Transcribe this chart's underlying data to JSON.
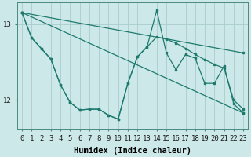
{
  "bg_color": "#cce8e8",
  "line_color": "#1e7a6e",
  "grid_color": "#aacccc",
  "xlabel": "Humidex (Indice chaleur)",
  "xlabel_fontsize": 7.5,
  "tick_fontsize": 6.5,
  "yticks": [
    12,
    13
  ],
  "xticks": [
    0,
    1,
    2,
    3,
    4,
    5,
    6,
    7,
    8,
    9,
    10,
    11,
    12,
    13,
    14,
    15,
    16,
    17,
    18,
    19,
    20,
    21,
    22,
    23
  ],
  "ylim": [
    11.62,
    13.28
  ],
  "xlim": [
    -0.5,
    23.5
  ],
  "series1_x": [
    0,
    1,
    2,
    3,
    4,
    5,
    6,
    7,
    8,
    9,
    10,
    11,
    12,
    13,
    14,
    15,
    16,
    17,
    18,
    19,
    20,
    21,
    22,
    23
  ],
  "series1_y": [
    13.15,
    12.82,
    12.68,
    12.54,
    12.2,
    11.97,
    11.87,
    11.88,
    11.88,
    11.8,
    11.75,
    12.22,
    12.57,
    12.7,
    13.18,
    12.62,
    12.4,
    12.6,
    12.55,
    12.22,
    12.22,
    12.45,
    11.95,
    11.83
  ],
  "series2_x": [
    0,
    1,
    2,
    3,
    4,
    5,
    6,
    7,
    8,
    9,
    10,
    11,
    12,
    13,
    14,
    15,
    16,
    17,
    18,
    19,
    20,
    21,
    22,
    23
  ],
  "series2_y": [
    13.15,
    12.82,
    12.68,
    12.54,
    12.2,
    11.97,
    11.87,
    11.88,
    11.88,
    11.8,
    11.75,
    12.22,
    12.57,
    12.7,
    12.83,
    12.8,
    12.75,
    12.68,
    12.6,
    12.53,
    12.47,
    12.42,
    12.0,
    11.88
  ],
  "series3_x": [
    0,
    23
  ],
  "series3_y": [
    13.15,
    12.62
  ],
  "series4_x": [
    0,
    23
  ],
  "series4_y": [
    13.15,
    11.83
  ]
}
